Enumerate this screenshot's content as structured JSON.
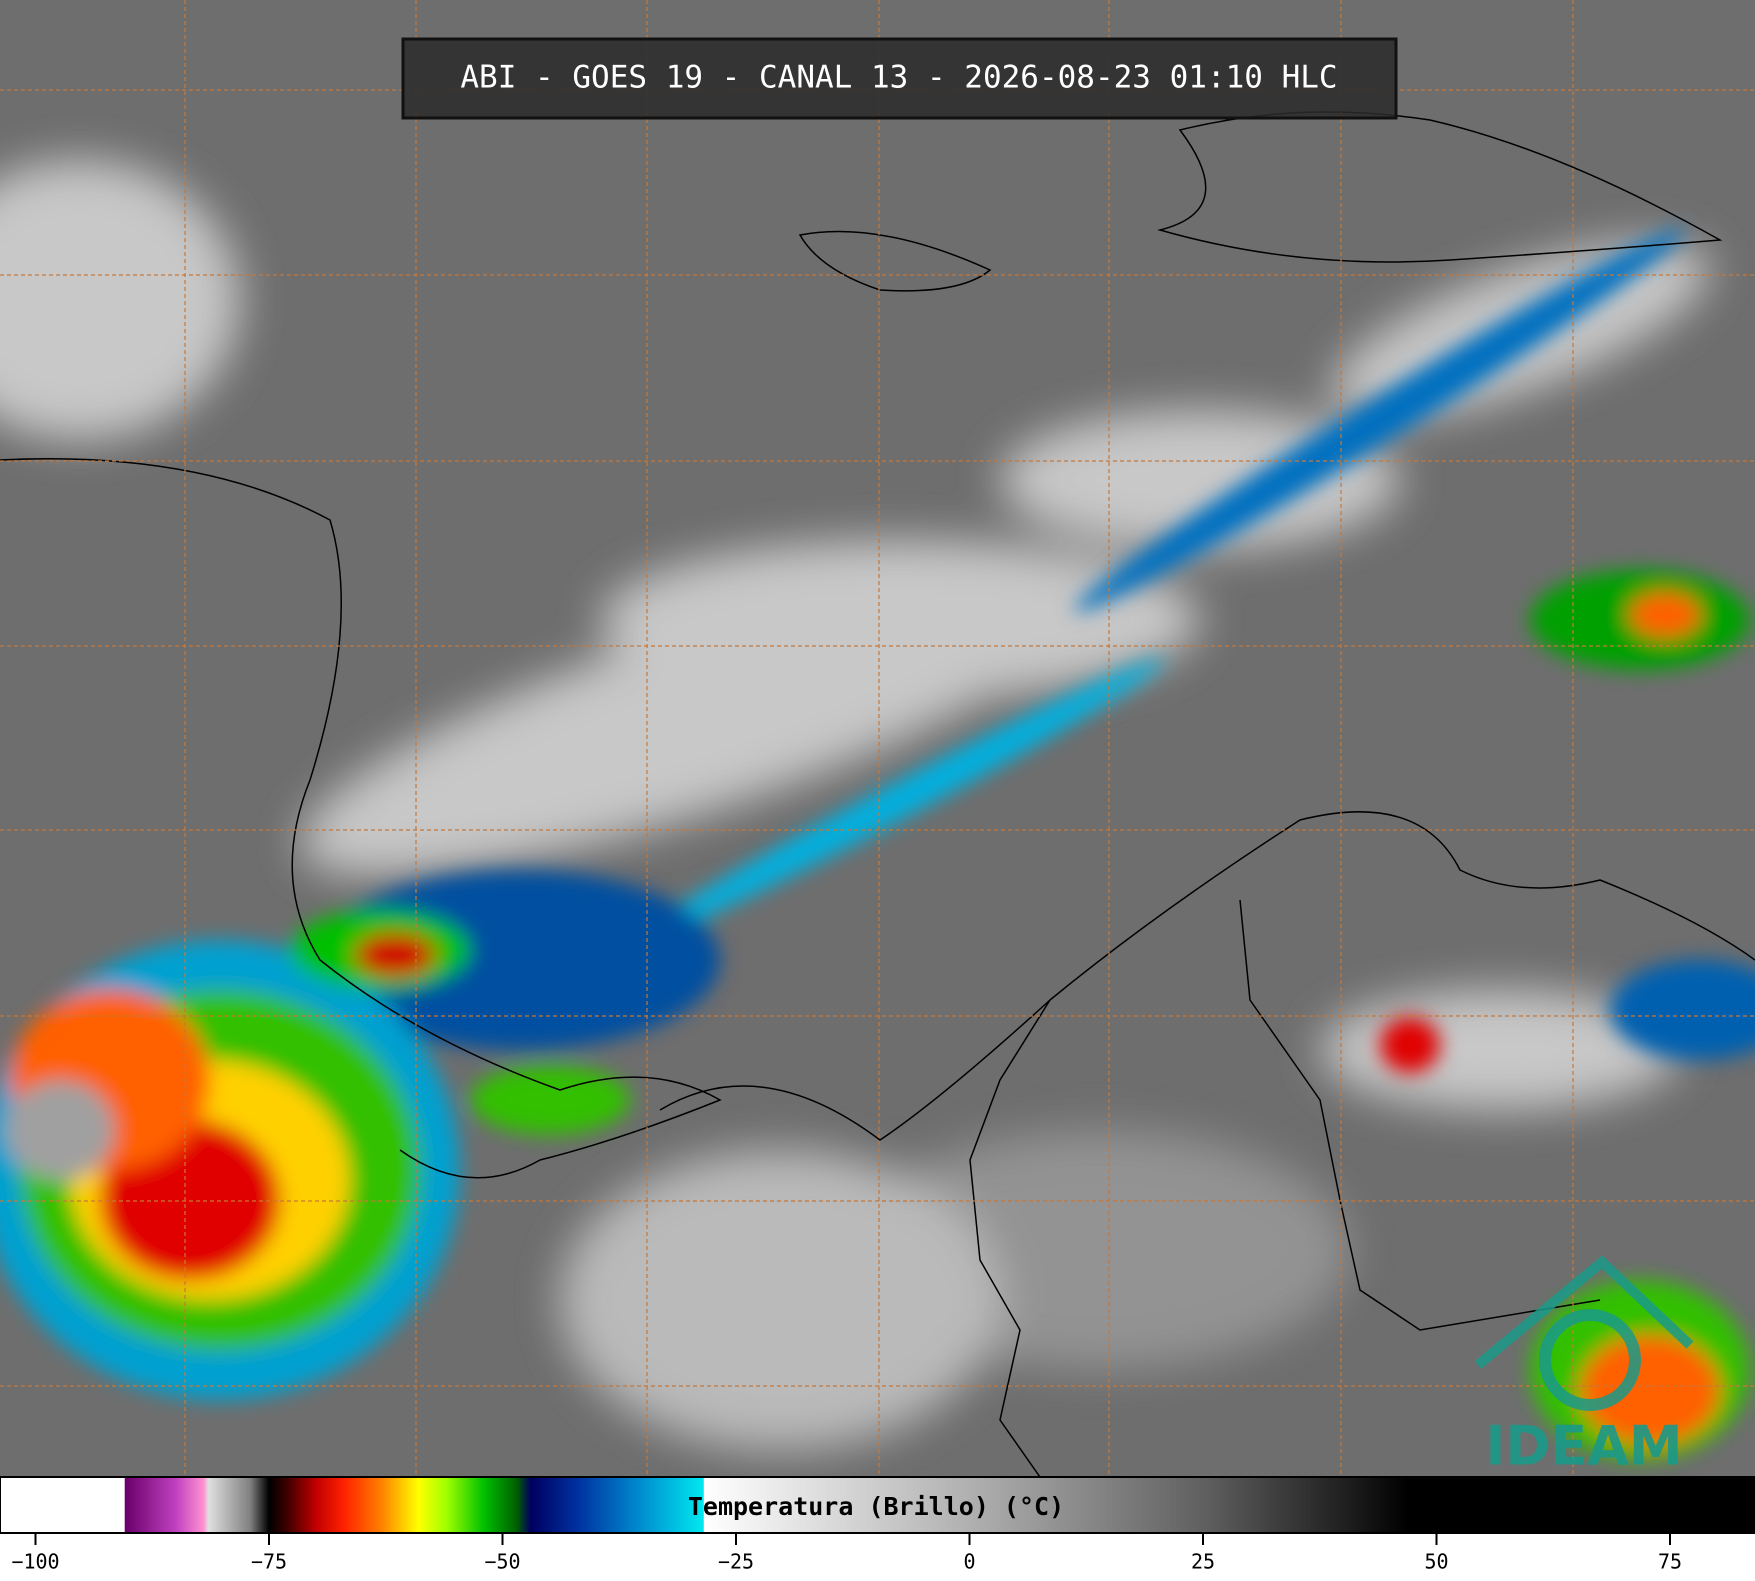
{
  "title": "ABI - GOES 19 - CANAL 13 - 2026-08-23 01:10 HLC",
  "logo": "IDEAM",
  "colorbar": {
    "label": "Temperatura (Brillo) (°C)",
    "lim": [
      -103.8,
      84.1
    ],
    "ticks": [
      {
        "value": -100,
        "label": "−100"
      },
      {
        "value": -75,
        "label": "−75"
      },
      {
        "value": -50,
        "label": "−50"
      },
      {
        "value": -25,
        "label": "−25"
      },
      0,
      25,
      50,
      75
    ],
    "colormap": [
      [
        -103.8,
        "#ffffff"
      ],
      [
        -90.5,
        "#ffffff"
      ],
      [
        -90.4,
        "#6a006a"
      ],
      [
        -85,
        "#c040c0"
      ],
      [
        -82,
        "#ff90d0"
      ],
      [
        -81.5,
        "#e0e0e0"
      ],
      [
        -77,
        "#808080"
      ],
      [
        -75.5,
        "#202020"
      ],
      [
        -75,
        "#000000"
      ],
      [
        -73,
        "#400000"
      ],
      [
        -70,
        "#c00000"
      ],
      [
        -67,
        "#ff2000"
      ],
      [
        -63,
        "#ff8000"
      ],
      [
        -59,
        "#ffff00"
      ],
      [
        -56,
        "#a0ff00"
      ],
      [
        -52,
        "#00c000"
      ],
      [
        -48.5,
        "#006000"
      ],
      [
        -47,
        "#000060"
      ],
      [
        -42,
        "#0030a0"
      ],
      [
        -35,
        "#0090d0"
      ],
      [
        -28.5,
        "#00e8f0"
      ],
      [
        -28.4,
        "#ffffff"
      ],
      [
        -20,
        "#e8e8e8"
      ],
      [
        0,
        "#b0b0b0"
      ],
      [
        25,
        "#606060"
      ],
      [
        40,
        "#202020"
      ],
      [
        47,
        "#000000"
      ],
      [
        84.1,
        "#000000"
      ]
    ]
  }
}
